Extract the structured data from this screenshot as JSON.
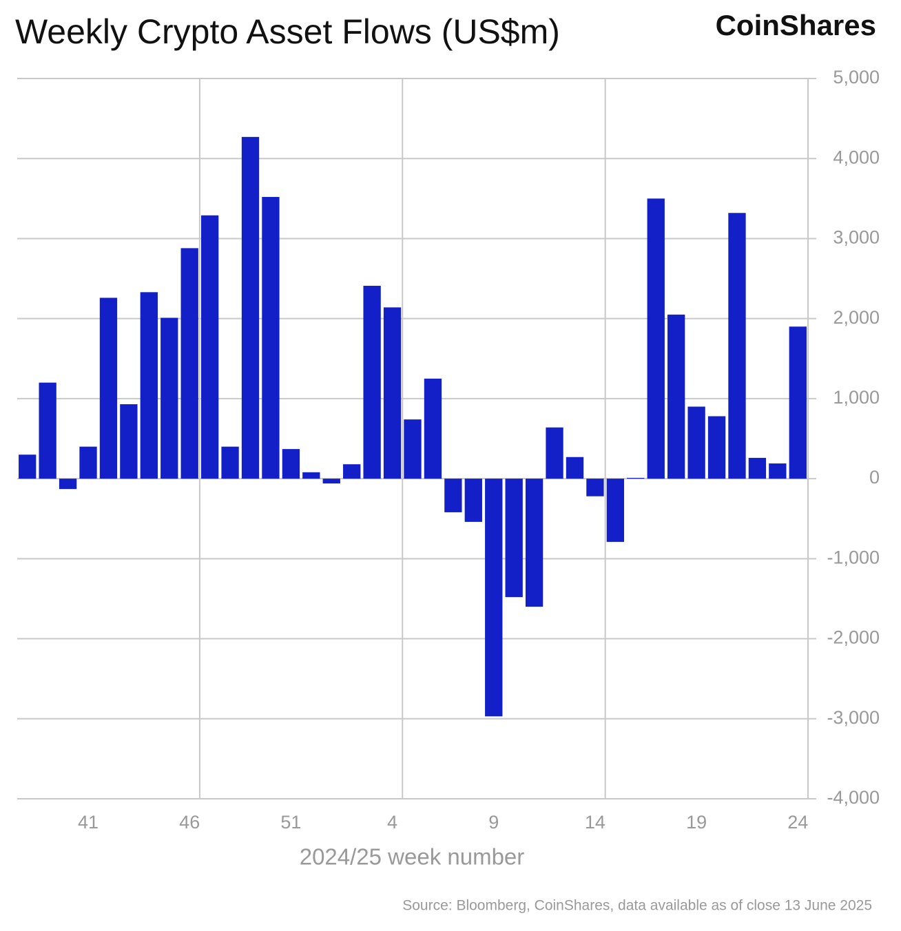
{
  "chart_data": {
    "type": "bar",
    "title": "Weekly Crypto Asset Flows (US$m)",
    "brand": "CoinShares",
    "x_label": "2024/25 week number",
    "source": "Source: Bloomberg, CoinShares, data available as of close 13 June 2025",
    "categories": [
      null,
      null,
      null,
      "41",
      null,
      null,
      null,
      null,
      "46",
      null,
      null,
      null,
      null,
      "51",
      null,
      null,
      null,
      null,
      "4",
      null,
      null,
      null,
      null,
      "9",
      null,
      null,
      null,
      null,
      "14",
      null,
      null,
      null,
      null,
      "19",
      null,
      null,
      null,
      null,
      "24"
    ],
    "values": [
      300,
      1200,
      -130,
      400,
      2260,
      930,
      2330,
      2010,
      2880,
      3290,
      400,
      4270,
      3520,
      370,
      80,
      -60,
      180,
      2410,
      2140,
      740,
      1250,
      -420,
      -540,
      -2970,
      -1480,
      -1600,
      640,
      270,
      -220,
      -790,
      10,
      3500,
      2050,
      900,
      780,
      3320,
      260,
      190,
      1900
    ],
    "color": "#1320c8",
    "ylim": [
      -4000,
      5000
    ],
    "yticks": [
      {
        "value": -4000,
        "label": "-4,000"
      },
      {
        "value": -3000,
        "label": "-3,000"
      },
      {
        "value": -2000,
        "label": "-2,000"
      },
      {
        "value": -1000,
        "label": "-1,000"
      },
      0,
      {
        "value": 1000,
        "label": "1,000"
      },
      {
        "value": 2000,
        "label": "2,000"
      },
      {
        "value": 3000,
        "label": "3,000"
      },
      {
        "value": 4000,
        "label": "4,000"
      },
      {
        "value": 5000,
        "label": "5,000"
      }
    ],
    "grid": true
  }
}
